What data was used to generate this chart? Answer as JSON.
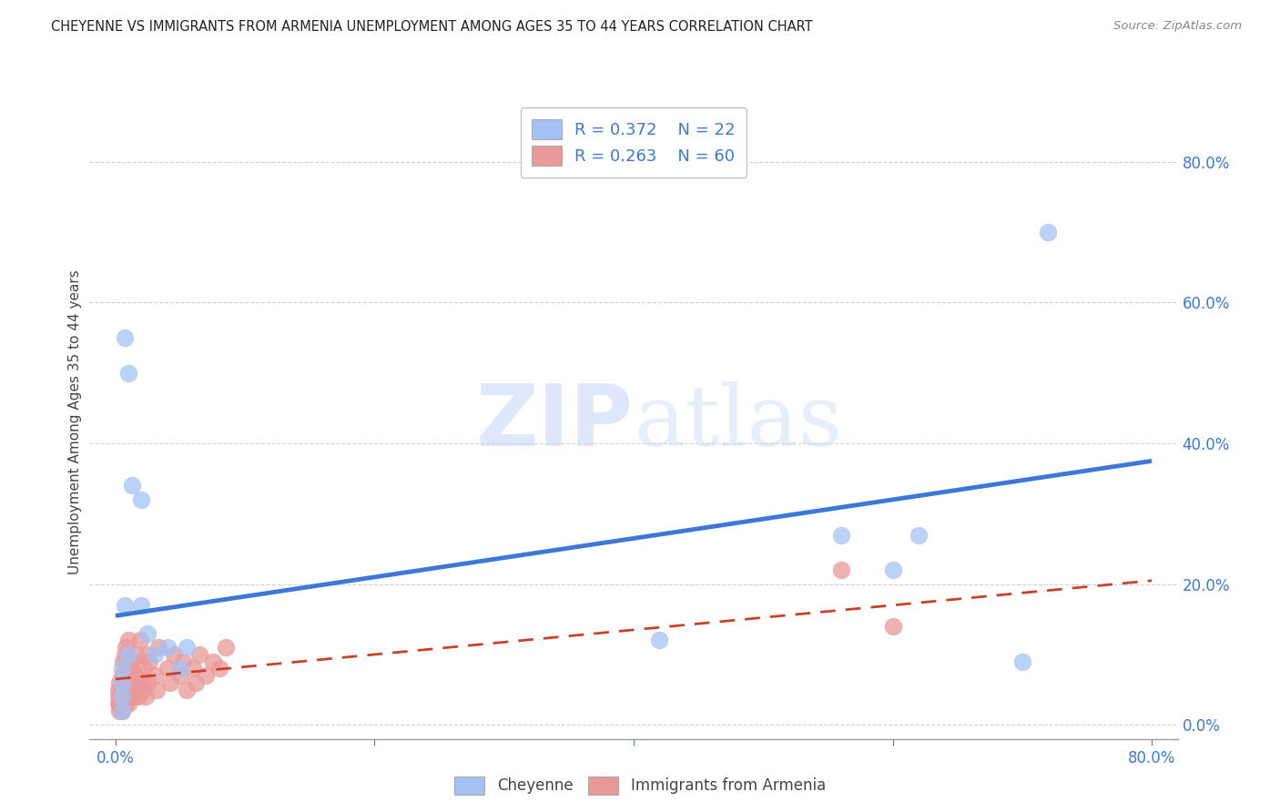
{
  "title": "CHEYENNE VS IMMIGRANTS FROM ARMENIA UNEMPLOYMENT AMONG AGES 35 TO 44 YEARS CORRELATION CHART",
  "source": "Source: ZipAtlas.com",
  "ylabel": "Unemployment Among Ages 35 to 44 years",
  "xlim": [
    -0.02,
    0.82
  ],
  "ylim": [
    -0.02,
    0.88
  ],
  "ytick_positions": [
    0.0,
    0.2,
    0.4,
    0.6,
    0.8
  ],
  "xtick_positions": [
    0.0,
    0.2,
    0.4,
    0.6,
    0.8
  ],
  "cheyenne_color": "#a4c2f4",
  "cheyenne_edge_color": "#6d9eeb",
  "armenia_color": "#ea9999",
  "armenia_edge_color": "#e06666",
  "cheyenne_line_color": "#3c78d8",
  "armenia_line_color": "#cc4125",
  "legend_R_cheyenne": "R = 0.372",
  "legend_N_cheyenne": "N = 22",
  "legend_R_armenia": "R = 0.263",
  "legend_N_armenia": "N = 60",
  "cheyenne_scatter_x": [
    0.005,
    0.005,
    0.005,
    0.005,
    0.007,
    0.007,
    0.01,
    0.01,
    0.013,
    0.02,
    0.02,
    0.025,
    0.03,
    0.04,
    0.05,
    0.055,
    0.42,
    0.56,
    0.6,
    0.62,
    0.7,
    0.72
  ],
  "cheyenne_scatter_y": [
    0.02,
    0.04,
    0.06,
    0.08,
    0.17,
    0.55,
    0.5,
    0.1,
    0.34,
    0.17,
    0.32,
    0.13,
    0.1,
    0.11,
    0.08,
    0.11,
    0.12,
    0.27,
    0.22,
    0.27,
    0.09,
    0.7
  ],
  "armenia_scatter_x": [
    0.002,
    0.002,
    0.002,
    0.003,
    0.003,
    0.003,
    0.004,
    0.004,
    0.005,
    0.005,
    0.005,
    0.006,
    0.006,
    0.006,
    0.007,
    0.007,
    0.008,
    0.008,
    0.008,
    0.009,
    0.009,
    0.01,
    0.01,
    0.01,
    0.012,
    0.012,
    0.013,
    0.013,
    0.014,
    0.015,
    0.016,
    0.016,
    0.018,
    0.018,
    0.019,
    0.02,
    0.021,
    0.022,
    0.023,
    0.024,
    0.025,
    0.026,
    0.03,
    0.032,
    0.033,
    0.04,
    0.042,
    0.045,
    0.05,
    0.052,
    0.055,
    0.06,
    0.062,
    0.065,
    0.07,
    0.075,
    0.08,
    0.085,
    0.56,
    0.6
  ],
  "armenia_scatter_y": [
    0.03,
    0.04,
    0.05,
    0.02,
    0.03,
    0.06,
    0.03,
    0.05,
    0.02,
    0.04,
    0.07,
    0.03,
    0.05,
    0.09,
    0.04,
    0.1,
    0.03,
    0.06,
    0.11,
    0.04,
    0.08,
    0.03,
    0.06,
    0.12,
    0.04,
    0.08,
    0.05,
    0.09,
    0.04,
    0.07,
    0.05,
    0.1,
    0.04,
    0.07,
    0.12,
    0.06,
    0.05,
    0.08,
    0.04,
    0.1,
    0.06,
    0.09,
    0.07,
    0.05,
    0.11,
    0.08,
    0.06,
    0.1,
    0.07,
    0.09,
    0.05,
    0.08,
    0.06,
    0.1,
    0.07,
    0.09,
    0.08,
    0.11,
    0.22,
    0.14
  ],
  "cheyenne_line_x0": 0.0,
  "cheyenne_line_x1": 0.8,
  "cheyenne_line_y0": 0.155,
  "cheyenne_line_y1": 0.375,
  "armenia_line_x0": 0.0,
  "armenia_line_x1": 0.8,
  "armenia_line_y0": 0.065,
  "armenia_line_y1": 0.205,
  "watermark_text": "ZIPatlas",
  "background_color": "#ffffff",
  "grid_color": "#d0d0d0"
}
